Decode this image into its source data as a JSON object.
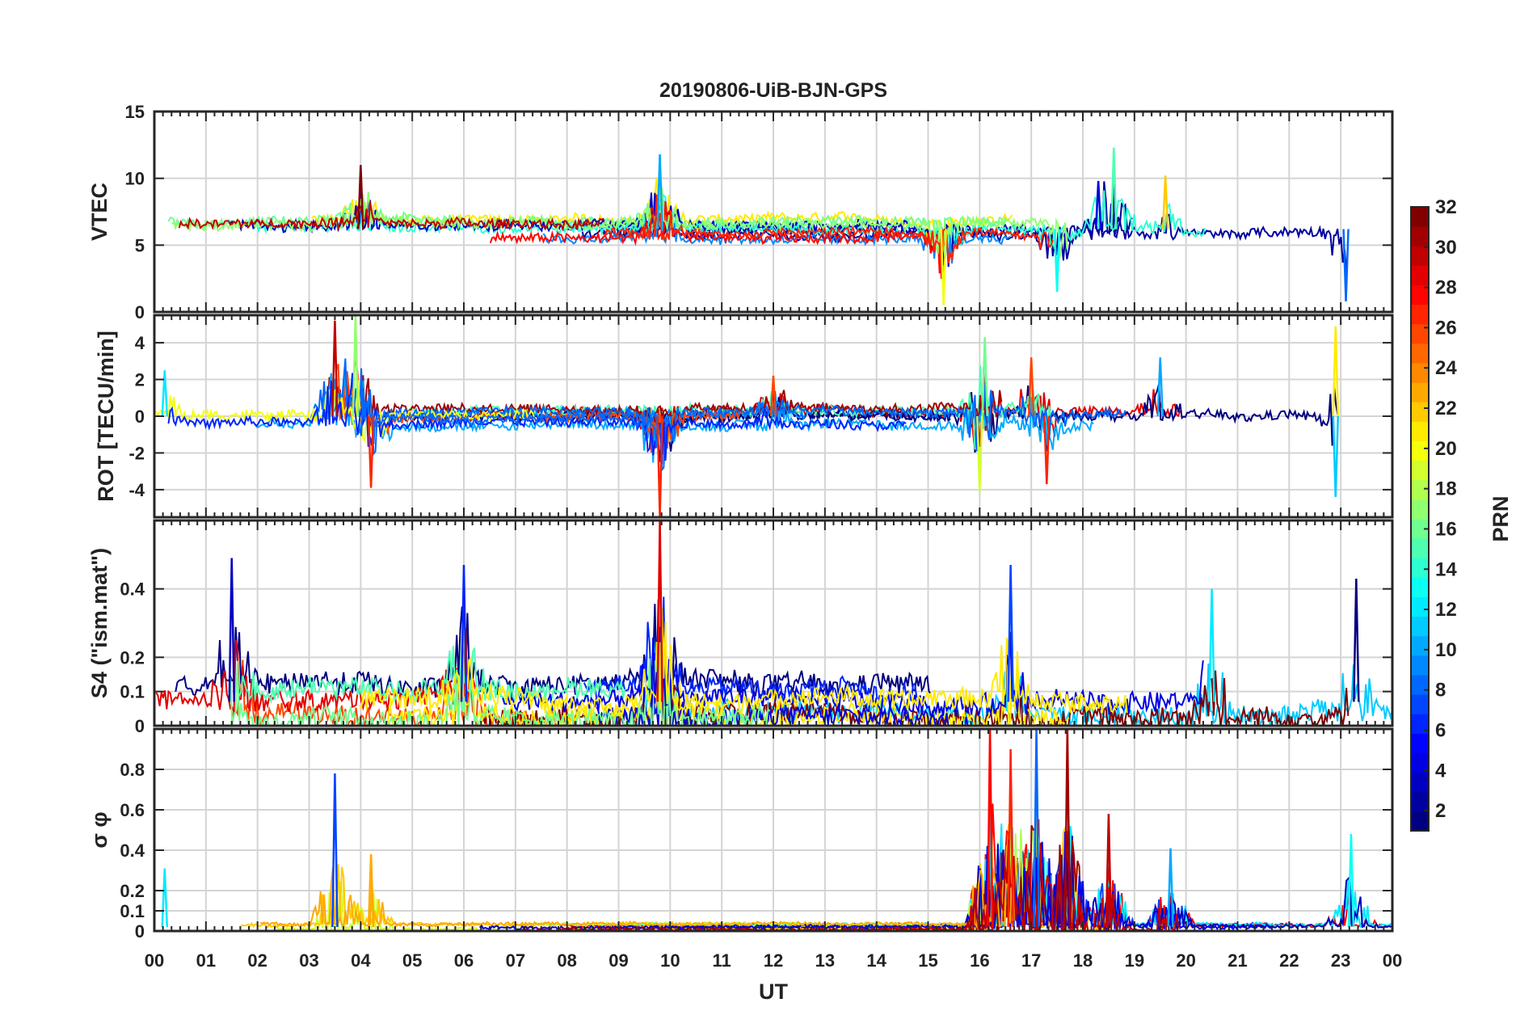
{
  "chart_data": {
    "type": "line",
    "title": "20190806-UiB-BJN-GPS",
    "xlabel": "UT",
    "x_range_hours": [
      0,
      24
    ],
    "x_tick_labels": [
      "00",
      "01",
      "02",
      "03",
      "04",
      "05",
      "06",
      "07",
      "08",
      "09",
      "10",
      "11",
      "12",
      "13",
      "14",
      "15",
      "16",
      "17",
      "18",
      "19",
      "20",
      "21",
      "22",
      "23",
      "00"
    ],
    "colorbar": {
      "label": "PRN",
      "range": [
        1,
        32
      ],
      "tick_labels": [
        "2",
        "4",
        "6",
        "8",
        "10",
        "12",
        "14",
        "16",
        "18",
        "20",
        "22",
        "24",
        "26",
        "28",
        "30",
        "32"
      ],
      "colormap": "jet"
    },
    "panels": [
      {
        "id": "vtec",
        "ylabel": "VTEC",
        "ylim": [
          0,
          15
        ],
        "y_tick_labels": [
          "0",
          "5",
          "10",
          "15"
        ],
        "baseline": 6.2,
        "noise": 0.35,
        "events": [
          {
            "t": 4.0,
            "peak": 11.0
          },
          {
            "t": 9.8,
            "peak": 11.8
          },
          {
            "t": 15.3,
            "peak": 0.5
          },
          {
            "t": 17.5,
            "peak": 1.5
          },
          {
            "t": 18.3,
            "peak": 9.8
          },
          {
            "t": 18.6,
            "peak": 12.3
          },
          {
            "t": 19.6,
            "peak": 10.2
          },
          {
            "t": 23.1,
            "peak": 0.8
          }
        ]
      },
      {
        "id": "rot",
        "ylabel": "ROT [TECU/min]",
        "ylim": [
          -5.5,
          5.5
        ],
        "y_tick_labels": [
          "-4",
          "-2",
          "0",
          "2",
          "4"
        ],
        "baseline": 0,
        "noise": 0.25,
        "events": [
          {
            "t": 0.2,
            "peak": 2.5
          },
          {
            "t": 3.5,
            "peak": 5.2
          },
          {
            "t": 3.9,
            "peak": 5.5
          },
          {
            "t": 4.2,
            "peak": -3.9
          },
          {
            "t": 9.8,
            "peak": -5.5
          },
          {
            "t": 12.0,
            "peak": 2.2
          },
          {
            "t": 16.1,
            "peak": 4.3
          },
          {
            "t": 16.0,
            "peak": -4.1
          },
          {
            "t": 17.0,
            "peak": 3.2
          },
          {
            "t": 17.3,
            "peak": -3.7
          },
          {
            "t": 19.5,
            "peak": 3.2
          },
          {
            "t": 22.9,
            "peak": 4.9
          },
          {
            "t": 22.9,
            "peak": -4.4
          }
        ]
      },
      {
        "id": "s4",
        "ylabel": "S4 (\"ism.mat\")",
        "ylim": [
          0,
          0.6
        ],
        "y_tick_labels": [
          "0",
          "0.1",
          "0.2",
          "0.4"
        ],
        "baseline": 0.07,
        "noise": 0.03,
        "events": [
          {
            "t": 1.5,
            "peak": 0.49
          },
          {
            "t": 6.0,
            "peak": 0.47
          },
          {
            "t": 9.8,
            "peak": 0.6
          },
          {
            "t": 16.6,
            "peak": 0.47
          },
          {
            "t": 20.5,
            "peak": 0.4
          },
          {
            "t": 23.3,
            "peak": 0.43
          }
        ]
      },
      {
        "id": "sigphi",
        "ylabel": "σ φ",
        "ylim": [
          0,
          1
        ],
        "y_tick_labels": [
          "0",
          "0.1",
          "0.2",
          "0.4",
          "0.6",
          "0.8"
        ],
        "baseline": 0.02,
        "noise": 0.008,
        "events": [
          {
            "t": 0.2,
            "peak": 0.31
          },
          {
            "t": 3.5,
            "peak": 0.78
          },
          {
            "t": 4.2,
            "peak": 0.38
          },
          {
            "t": 16.2,
            "peak": 1.0
          },
          {
            "t": 16.6,
            "peak": 0.9
          },
          {
            "t": 17.1,
            "peak": 1.0
          },
          {
            "t": 17.7,
            "peak": 1.0
          },
          {
            "t": 18.5,
            "peak": 0.58
          },
          {
            "t": 19.7,
            "peak": 0.41
          },
          {
            "t": 23.2,
            "peak": 0.48
          }
        ]
      }
    ]
  }
}
